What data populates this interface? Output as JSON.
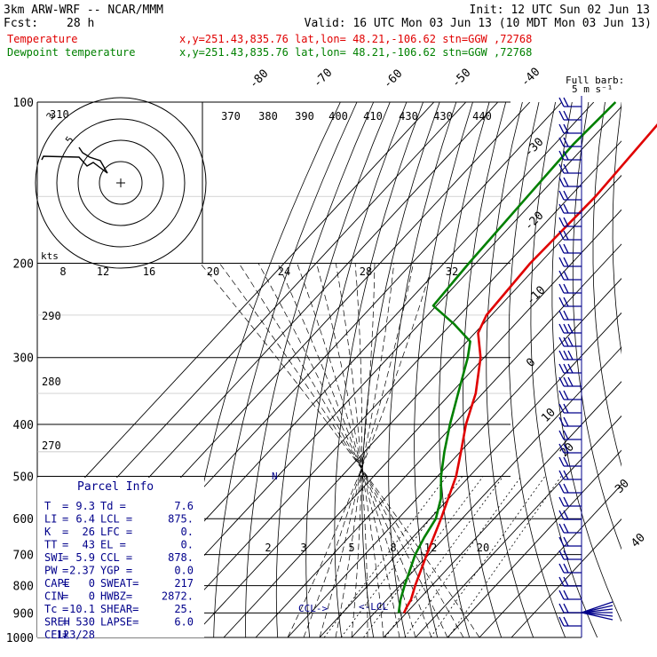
{
  "header": {
    "model": "3km ARW-WRF -- NCAR/MMM",
    "init": "Init: 12 UTC Sun 02 Jun 13",
    "fcst_label": "Fcst:",
    "fcst_value": "28 h",
    "valid": "Valid: 16 UTC Mon 03 Jun 13 (10 MDT Mon 03 Jun 13)",
    "temp_label": "Temperature",
    "dew_label": "Dewpoint temperature",
    "location_text": "x,y=251.43,835.76   lat,lon= 48.21,-106.62  stn=GGW ,72768",
    "temp_color": "#e00000",
    "dew_color": "#008000"
  },
  "barb_legend": {
    "title": "Full barb:",
    "value": "5 m s⁻¹"
  },
  "hodograph": {
    "units_label": "kts",
    "ring_labels": [
      "5",
      "3"
    ],
    "color": "#000000"
  },
  "parcel": {
    "title": "Parcel Info",
    "rows": [
      [
        "T",
        "=",
        "9.3",
        "Td =",
        "7.6"
      ],
      [
        "LI",
        "=",
        "6.4",
        "LCL =",
        "875."
      ],
      [
        "K",
        "=",
        "26",
        "LFC =",
        "0."
      ],
      [
        "TT",
        "=",
        "43",
        "EL =",
        "0."
      ],
      [
        "SWI",
        "=",
        "5.9",
        "CCL =",
        "878."
      ],
      [
        "PW",
        "=",
        "2.37",
        "YGP =",
        "0.0"
      ],
      [
        "CAPE",
        "=",
        "0",
        "SWEAT=",
        "217"
      ],
      [
        "CIN",
        "=",
        "0",
        "HWBZ=",
        "2872."
      ],
      [
        "Tc",
        "=",
        "10.1",
        "SHEAR=",
        "25."
      ],
      [
        "SREH",
        "=",
        "530",
        "LAPSE=",
        "6.0"
      ],
      [
        "CELL",
        "=",
        "123/28",
        "",
        ""
      ]
    ]
  },
  "annotations": {
    "ccl": "CCL->",
    "lcl": "<-LCL"
  },
  "chart_data": {
    "type": "line",
    "chart_kind": "skew-T log-P",
    "y_axis": {
      "label": "",
      "ticks": [
        "100",
        "200",
        "300",
        "400",
        "500",
        "600",
        "700",
        "800",
        "900",
        "1000"
      ],
      "scale": "log",
      "range": [
        1000,
        100
      ]
    },
    "isotherm_labels": [
      "-80",
      "-70",
      "-60",
      "-50",
      "-40",
      "-30",
      "-20",
      "-10",
      "0",
      "10",
      "20",
      "30",
      "40"
    ],
    "theta_e_labels": [
      "370",
      "380",
      "390",
      "400",
      "410",
      "430",
      "430",
      "440"
    ],
    "theta_labels": [
      "310",
      "300",
      "290",
      "280",
      "270"
    ],
    "mixing_ratio_labels_upper": [
      "8",
      "12",
      "16",
      "20",
      "24",
      "28",
      "32"
    ],
    "mixing_ratio_labels_lower": [
      "2",
      "3",
      "5",
      "8",
      "12",
      "20"
    ],
    "series": [
      {
        "name": "Temperature",
        "color": "#e00000",
        "points": [
          [
            900,
            9.3
          ],
          [
            880,
            8.5
          ],
          [
            850,
            7.6
          ],
          [
            800,
            4.8
          ],
          [
            700,
            -0.6
          ],
          [
            600,
            -6.6
          ],
          [
            500,
            -14.2
          ],
          [
            450,
            -19.8
          ],
          [
            400,
            -26.2
          ],
          [
            350,
            -32.2
          ],
          [
            300,
            -41.1
          ],
          [
            270,
            -49
          ],
          [
            250,
            -51.6
          ],
          [
            200,
            -53
          ],
          [
            150,
            -52
          ],
          [
            100,
            -54
          ]
        ]
      },
      {
        "name": "Dewpoint temperature",
        "color": "#008000",
        "points": [
          [
            900,
            7.6
          ],
          [
            850,
            4.3
          ],
          [
            800,
            1.5
          ],
          [
            700,
            -4.2
          ],
          [
            650,
            -6.4
          ],
          [
            600,
            -8.2
          ],
          [
            550,
            -12.5
          ],
          [
            500,
            -18.9
          ],
          [
            450,
            -25
          ],
          [
            400,
            -31.2
          ],
          [
            350,
            -37.7
          ],
          [
            300,
            -45.1
          ],
          [
            280,
            -49
          ],
          [
            260,
            -59
          ],
          [
            240,
            -71
          ],
          [
            200,
            -72.2
          ],
          [
            150,
            -73.3
          ],
          [
            120,
            -74.1
          ],
          [
            100,
            -73.2
          ]
        ]
      }
    ],
    "grid": true
  }
}
